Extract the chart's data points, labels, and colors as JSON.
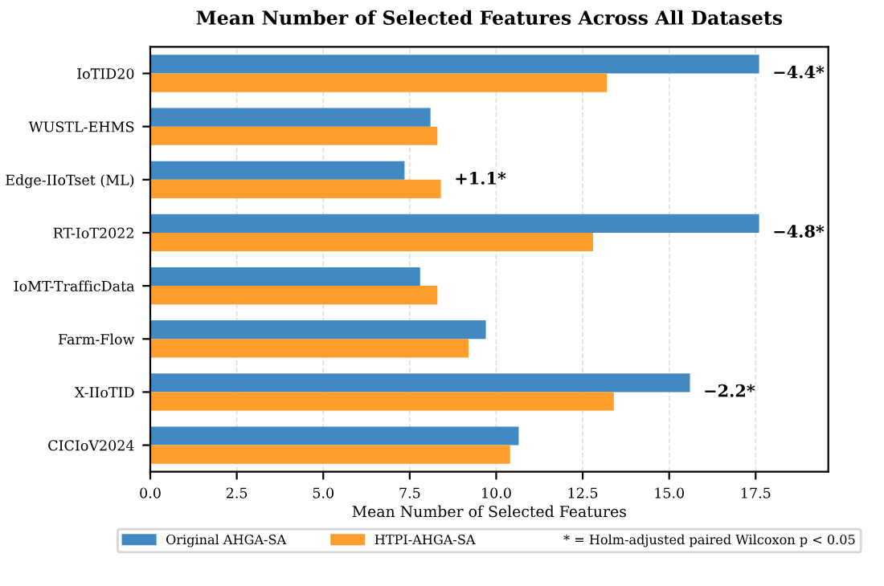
{
  "chart_data": {
    "type": "bar",
    "orientation": "horizontal",
    "title": "Mean Number of Selected Features Across All Datasets",
    "xlabel": "Mean Number of Selected Features",
    "categories": [
      "IoTID20",
      "WUSTL-EHMS",
      "Edge-IIoTset (ML)",
      "RT-IoT2022",
      "IoMT-TrafficData",
      "Farm-Flow",
      "X-IIoTID",
      "CICIoV2024"
    ],
    "series": [
      {
        "name": "Original AHGA-SA",
        "color": "#4289c1",
        "values": [
          17.6,
          8.1,
          7.35,
          17.6,
          7.8,
          9.7,
          15.6,
          10.65
        ]
      },
      {
        "name": "HTPI-AHGA-SA",
        "color": "#ff9d2d",
        "values": [
          13.2,
          8.3,
          8.4,
          12.8,
          8.3,
          9.2,
          13.4,
          10.4
        ]
      }
    ],
    "xlim": [
      0,
      19.6
    ],
    "xticks": [
      {
        "value": 0,
        "label": "0.0"
      },
      2.5,
      {
        "value": 5,
        "label": "5.0"
      },
      7.5,
      {
        "value": 10,
        "label": "10.0"
      },
      12.5,
      {
        "value": 15,
        "label": "15.0"
      },
      17.5
    ],
    "grid": "x",
    "legend": "bottom",
    "annotations": [
      {
        "text": "−4.4*",
        "x": 17.6,
        "y": "IoTID20"
      },
      {
        "text": "+1.1*",
        "x": 8.4,
        "y": "Edge-IIoTset (ML)"
      },
      {
        "text": "−4.8*",
        "x": 17.6,
        "y": "RT-IoT2022"
      },
      {
        "text": "−2.2*",
        "x": 15.6,
        "y": "X-IIoTID"
      },
      "* = Holm-adjusted paired Wilcoxon p < 0.05"
    ]
  }
}
